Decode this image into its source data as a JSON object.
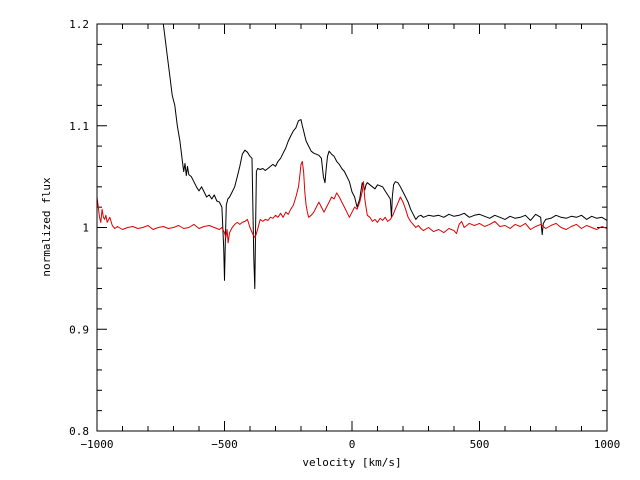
{
  "chart_data": {
    "type": "line",
    "title": "",
    "xlabel": "velocity [km/s]",
    "ylabel": "normalized flux",
    "xlim": [
      -1000,
      1000
    ],
    "ylim": [
      0.8,
      1.2
    ],
    "x_ticks": [
      -1000,
      -500,
      0,
      500,
      1000
    ],
    "x_tick_labels": [
      "−1000",
      "−500",
      "0",
      "500",
      "1000"
    ],
    "y_ticks": [
      0.8,
      0.9,
      1.0,
      1.1,
      1.2
    ],
    "y_tick_labels": [
      "0.8",
      "0.9",
      "1",
      "1.1",
      "1.2"
    ],
    "grid": false,
    "legend": "none",
    "series": [
      {
        "color": "#000000",
        "x": [
          -740,
          -735,
          -725,
          -715,
          -705,
          -695,
          -685,
          -675,
          -665,
          -660,
          -655,
          -650,
          -645,
          -640,
          -630,
          -620,
          -610,
          -600,
          -590,
          -580,
          -570,
          -560,
          -550,
          -540,
          -530,
          -520,
          -510,
          -503,
          -500,
          -497,
          -493,
          -487,
          -480,
          -470,
          -460,
          -450,
          -440,
          -430,
          -420,
          -410,
          -400,
          -392,
          -385,
          -381,
          -378,
          -375,
          -370,
          -360,
          -350,
          -340,
          -330,
          -320,
          -310,
          -300,
          -290,
          -280,
          -270,
          -260,
          -250,
          -240,
          -230,
          -220,
          -210,
          -200,
          -195,
          -190,
          -185,
          -180,
          -170,
          -160,
          -150,
          -140,
          -130,
          -120,
          -112,
          -106,
          -101,
          -96,
          -90,
          -80,
          -70,
          -60,
          -50,
          -40,
          -30,
          -20,
          -10,
          0,
          10,
          20,
          30,
          40,
          45,
          50,
          55,
          60,
          70,
          80,
          90,
          100,
          110,
          120,
          130,
          140,
          150,
          155,
          158,
          163,
          170,
          180,
          190,
          200,
          210,
          220,
          230,
          240,
          250,
          260,
          270,
          280,
          300,
          320,
          340,
          360,
          380,
          400,
          420,
          440,
          460,
          480,
          500,
          520,
          540,
          560,
          580,
          600,
          620,
          640,
          660,
          680,
          700,
          720,
          740,
          743,
          746,
          750,
          760,
          780,
          800,
          820,
          840,
          860,
          880,
          900,
          920,
          940,
          960,
          980,
          1000
        ],
        "y": [
          1.2,
          1.19,
          1.17,
          1.15,
          1.13,
          1.12,
          1.1,
          1.085,
          1.065,
          1.055,
          1.063,
          1.051,
          1.06,
          1.052,
          1.05,
          1.045,
          1.04,
          1.036,
          1.04,
          1.035,
          1.03,
          1.032,
          1.028,
          1.032,
          1.026,
          1.025,
          1.02,
          0.98,
          0.948,
          0.985,
          1.022,
          1.028,
          1.03,
          1.035,
          1.04,
          1.05,
          1.06,
          1.072,
          1.076,
          1.074,
          1.07,
          1.068,
          0.97,
          0.94,
          1.0,
          1.055,
          1.058,
          1.057,
          1.058,
          1.056,
          1.058,
          1.06,
          1.062,
          1.06,
          1.065,
          1.068,
          1.073,
          1.078,
          1.085,
          1.09,
          1.095,
          1.098,
          1.105,
          1.106,
          1.1,
          1.095,
          1.09,
          1.085,
          1.08,
          1.075,
          1.073,
          1.072,
          1.071,
          1.068,
          1.05,
          1.044,
          1.058,
          1.07,
          1.075,
          1.072,
          1.07,
          1.065,
          1.062,
          1.058,
          1.055,
          1.05,
          1.045,
          1.035,
          1.03,
          1.02,
          1.028,
          1.044,
          1.041,
          1.037,
          1.042,
          1.044,
          1.042,
          1.04,
          1.038,
          1.042,
          1.041,
          1.04,
          1.036,
          1.032,
          1.028,
          1.01,
          1.03,
          1.042,
          1.045,
          1.044,
          1.04,
          1.035,
          1.03,
          1.025,
          1.018,
          1.013,
          1.008,
          1.011,
          1.012,
          1.01,
          1.012,
          1.011,
          1.012,
          1.01,
          1.013,
          1.011,
          1.012,
          1.014,
          1.01,
          1.012,
          1.013,
          1.011,
          1.009,
          1.012,
          1.01,
          1.008,
          1.011,
          1.009,
          1.01,
          1.012,
          1.007,
          1.013,
          1.01,
          1.0,
          0.993,
          1.004,
          1.008,
          1.009,
          1.012,
          1.01,
          1.009,
          1.011,
          1.01,
          1.012,
          1.008,
          1.011,
          1.009,
          1.01,
          1.007
        ]
      },
      {
        "color": "#dd0000",
        "x": [
          -1000,
          -995,
          -990,
          -985,
          -980,
          -975,
          -970,
          -965,
          -960,
          -950,
          -940,
          -930,
          -920,
          -900,
          -880,
          -860,
          -840,
          -820,
          -800,
          -780,
          -760,
          -740,
          -720,
          -700,
          -680,
          -660,
          -640,
          -620,
          -600,
          -580,
          -560,
          -540,
          -520,
          -510,
          -500,
          -495,
          -490,
          -486,
          -480,
          -470,
          -460,
          -450,
          -440,
          -430,
          -420,
          -410,
          -400,
          -390,
          -380,
          -370,
          -360,
          -350,
          -340,
          -330,
          -320,
          -310,
          -300,
          -290,
          -280,
          -270,
          -260,
          -250,
          -240,
          -230,
          -220,
          -215,
          -210,
          -205,
          -200,
          -195,
          -190,
          -185,
          -180,
          -175,
          -170,
          -160,
          -150,
          -140,
          -130,
          -120,
          -110,
          -100,
          -90,
          -80,
          -70,
          -60,
          -50,
          -40,
          -30,
          -20,
          -10,
          0,
          10,
          20,
          30,
          40,
          45,
          50,
          55,
          60,
          70,
          80,
          90,
          100,
          110,
          120,
          130,
          140,
          150,
          160,
          170,
          180,
          190,
          200,
          210,
          220,
          230,
          240,
          250,
          260,
          270,
          280,
          300,
          320,
          340,
          360,
          380,
          400,
          410,
          420,
          430,
          440,
          460,
          480,
          500,
          520,
          540,
          560,
          580,
          600,
          620,
          640,
          660,
          680,
          700,
          720,
          740,
          760,
          780,
          800,
          820,
          840,
          860,
          880,
          900,
          920,
          940,
          960,
          980,
          1000
        ],
        "y": [
          1.03,
          1.02,
          1.01,
          1.005,
          1.018,
          1.01,
          1.008,
          1.012,
          1.005,
          1.01,
          1.002,
          0.999,
          1.001,
          0.998,
          1.0,
          1.001,
          0.999,
          1.0,
          1.002,
          0.998,
          1.0,
          1.001,
          0.999,
          1.0,
          1.002,
          0.999,
          1.0,
          1.003,
          0.999,
          1.001,
          1.002,
          1.0,
          0.998,
          1.0,
          0.995,
          0.99,
          0.998,
          0.985,
          0.995,
          1.0,
          1.003,
          1.005,
          1.003,
          1.005,
          1.006,
          1.008,
          1.0,
          0.994,
          0.99,
          0.998,
          1.008,
          1.006,
          1.008,
          1.007,
          1.01,
          1.009,
          1.012,
          1.01,
          1.014,
          1.01,
          1.015,
          1.013,
          1.018,
          1.022,
          1.03,
          1.035,
          1.04,
          1.05,
          1.062,
          1.065,
          1.055,
          1.035,
          1.022,
          1.015,
          1.01,
          1.012,
          1.015,
          1.02,
          1.025,
          1.02,
          1.015,
          1.02,
          1.025,
          1.03,
          1.028,
          1.034,
          1.03,
          1.025,
          1.02,
          1.015,
          1.01,
          1.015,
          1.02,
          1.018,
          1.025,
          1.035,
          1.045,
          1.028,
          1.02,
          1.012,
          1.01,
          1.006,
          1.008,
          1.005,
          1.009,
          1.007,
          1.01,
          1.006,
          1.008,
          1.012,
          1.018,
          1.024,
          1.03,
          1.025,
          1.018,
          1.01,
          1.006,
          1.003,
          1.0,
          1.002,
          0.999,
          0.997,
          1.0,
          0.996,
          0.998,
          0.995,
          0.999,
          0.997,
          0.994,
          1.003,
          1.006,
          1.0,
          1.004,
          1.002,
          1.004,
          1.001,
          1.003,
          1.006,
          1.001,
          1.002,
          0.999,
          1.003,
          1.001,
          1.004,
          0.998,
          1.001,
          1.003,
          0.999,
          1.002,
          1.004,
          1.0,
          0.998,
          1.001,
          1.003,
          0.999,
          1.002,
          1.0,
          0.998,
          1.001,
          0.999
        ]
      }
    ]
  }
}
